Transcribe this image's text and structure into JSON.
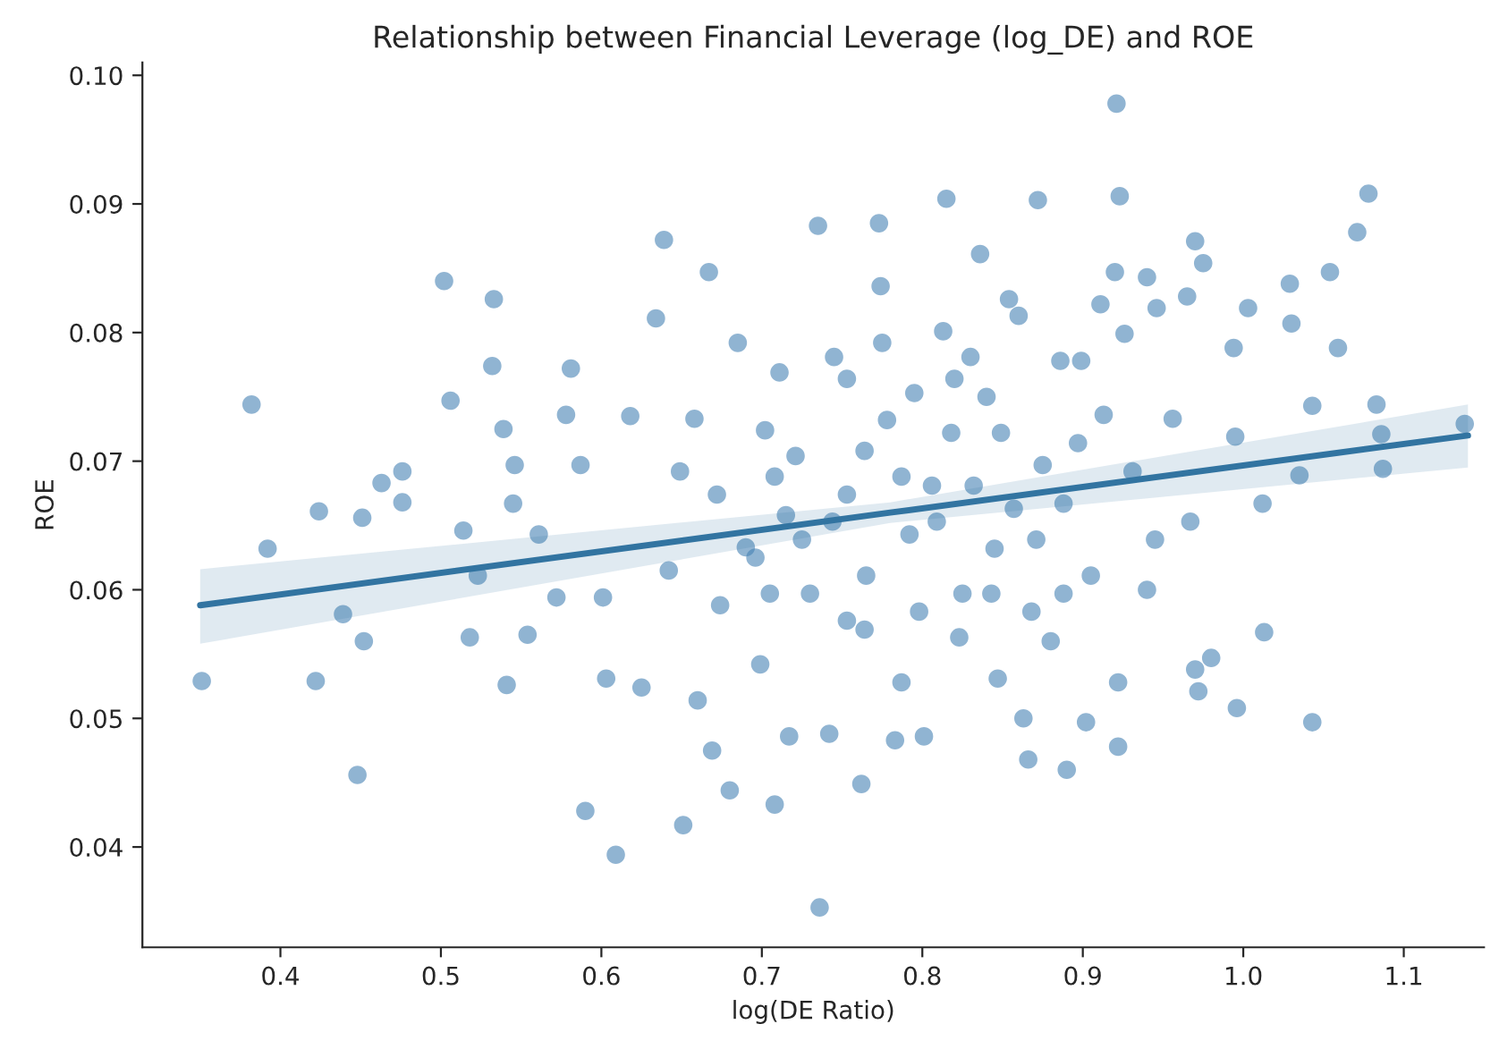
{
  "chart_data": {
    "type": "scatter",
    "title": "Relationship between Financial Leverage (log_DE) and ROE",
    "xlabel": "log(DE Ratio)",
    "ylabel": "ROE",
    "xlim": [
      0.314,
      1.15
    ],
    "ylim": [
      0.0322,
      0.101
    ],
    "xticks": [
      0.4,
      0.5,
      0.6,
      0.7,
      0.8,
      0.9,
      {
        "value": 1.0,
        "label": "1.0"
      },
      1.1
    ],
    "yticks": [
      0.04,
      0.05,
      0.06,
      0.07,
      0.08,
      0.09,
      {
        "value": 0.1,
        "label": "0.10"
      }
    ],
    "grid": false,
    "legend": false,
    "marker": "circle",
    "series": [
      {
        "color": "#4682b4",
        "x": [
          0.351,
          0.382,
          0.392,
          0.424,
          0.422,
          0.439,
          0.448,
          0.451,
          0.452,
          0.463,
          0.476,
          0.476,
          0.502,
          0.506,
          0.514,
          0.518,
          0.523,
          0.533,
          0.532,
          0.539,
          0.541,
          0.546,
          0.545,
          0.554,
          0.561,
          0.572,
          0.578,
          0.581,
          0.587,
          0.59,
          0.601,
          0.603,
          0.609,
          0.618,
          0.625,
          0.634,
          0.639,
          0.642,
          0.649,
          0.651,
          0.658,
          0.66,
          0.667,
          0.672,
          0.669,
          0.674,
          0.68,
          0.685,
          0.69,
          0.699,
          0.702,
          0.705,
          0.708,
          0.711,
          0.715,
          0.717,
          0.721,
          0.735,
          0.736,
          0.742,
          0.744,
          0.745,
          0.753,
          0.762,
          0.765,
          0.773,
          0.774,
          0.775,
          0.778,
          0.783,
          0.787,
          0.792,
          0.795,
          0.801,
          0.806,
          0.813,
          0.815,
          0.818,
          0.823,
          0.825,
          0.83,
          0.836,
          0.84,
          0.845,
          0.847,
          0.854,
          0.857,
          0.86,
          0.863,
          0.866,
          0.868,
          0.872,
          0.875,
          0.88,
          0.886,
          0.89,
          0.897,
          0.902,
          0.911,
          0.913,
          0.92,
          0.922,
          0.922,
          0.921,
          0.923,
          0.926,
          0.931,
          0.94,
          0.94,
          0.946,
          0.956,
          0.965,
          0.97,
          0.975,
          0.97,
          0.972,
          0.98,
          0.994,
          0.995,
          0.996,
          1.003,
          1.013,
          1.029,
          1.03,
          1.035,
          1.043,
          1.043,
          1.054,
          1.059,
          1.071,
          1.078,
          1.083,
          1.086,
          1.087,
          1.138,
          0.708,
          0.725,
          0.753,
          0.764,
          0.787,
          0.809,
          0.832,
          0.849,
          0.871,
          0.888,
          0.905,
          0.945,
          0.967,
          0.73,
          0.764,
          0.798,
          0.843,
          0.888,
          1.012,
          0.753,
          0.82,
          0.899,
          0.696
        ],
        "values": [
          0.0529,
          0.0744,
          0.0632,
          0.0661,
          0.0529,
          0.0581,
          0.0456,
          0.0656,
          0.056,
          0.0683,
          0.0692,
          0.0668,
          0.084,
          0.0747,
          0.0646,
          0.0563,
          0.0611,
          0.0826,
          0.0774,
          0.0725,
          0.0526,
          0.0697,
          0.0667,
          0.0565,
          0.0643,
          0.0594,
          0.0736,
          0.0772,
          0.0697,
          0.0428,
          0.0594,
          0.0531,
          0.0394,
          0.0735,
          0.0524,
          0.0811,
          0.0872,
          0.0615,
          0.0692,
          0.0417,
          0.0733,
          0.0514,
          0.0847,
          0.0674,
          0.0475,
          0.0588,
          0.0444,
          0.0792,
          0.0633,
          0.0542,
          0.0724,
          0.0597,
          0.0433,
          0.0769,
          0.0658,
          0.0486,
          0.0704,
          0.0883,
          0.0353,
          0.0488,
          0.0653,
          0.0781,
          0.0576,
          0.0449,
          0.0611,
          0.0885,
          0.0836,
          0.0792,
          0.0732,
          0.0483,
          0.0528,
          0.0643,
          0.0753,
          0.0486,
          0.0681,
          0.0801,
          0.0904,
          0.0722,
          0.0563,
          0.0597,
          0.0781,
          0.0861,
          0.075,
          0.0632,
          0.0531,
          0.0826,
          0.0663,
          0.0813,
          0.05,
          0.0468,
          0.0583,
          0.0903,
          0.0697,
          0.056,
          0.0778,
          0.046,
          0.0714,
          0.0497,
          0.0822,
          0.0736,
          0.0847,
          0.0528,
          0.0478,
          0.0978,
          0.0906,
          0.0799,
          0.0692,
          0.0843,
          0.06,
          0.0819,
          0.0733,
          0.0828,
          0.0871,
          0.0854,
          0.0538,
          0.0521,
          0.0547,
          0.0788,
          0.0719,
          0.0508,
          0.0819,
          0.0567,
          0.0838,
          0.0807,
          0.0689,
          0.0497,
          0.0743,
          0.0847,
          0.0788,
          0.0878,
          0.0908,
          0.0744,
          0.0721,
          0.0694,
          0.0729,
          0.0688,
          0.0639,
          0.0674,
          0.0708,
          0.0688,
          0.0653,
          0.0681,
          0.0722,
          0.0639,
          0.0667,
          0.0611,
          0.0639,
          0.0653,
          0.0597,
          0.0569,
          0.0583,
          0.0597,
          0.0597,
          0.0667,
          0.0764,
          0.0764,
          0.0778,
          0.0625
        ]
      },
      {
        "type": "line",
        "color": "#3274a1",
        "marker": "none",
        "line_style": "solid",
        "x": [
          0.35,
          0.78,
          1.14
        ],
        "values": [
          0.0588,
          0.066,
          0.072
        ],
        "lower": [
          0.0558,
          0.0652,
          0.0695
        ],
        "upper": [
          0.0616,
          0.0668,
          0.0744
        ]
      }
    ]
  }
}
